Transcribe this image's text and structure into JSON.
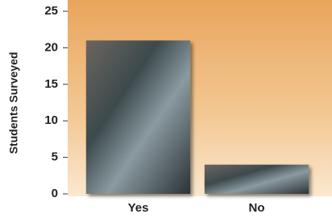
{
  "chart_data": {
    "type": "bar",
    "y_label": "Students Surveyed",
    "categories": [
      "Yes",
      "No"
    ],
    "values": [
      21,
      4
    ],
    "ylim": [
      0,
      25
    ],
    "yticks": [
      0,
      5,
      10,
      15,
      20,
      25
    ]
  }
}
